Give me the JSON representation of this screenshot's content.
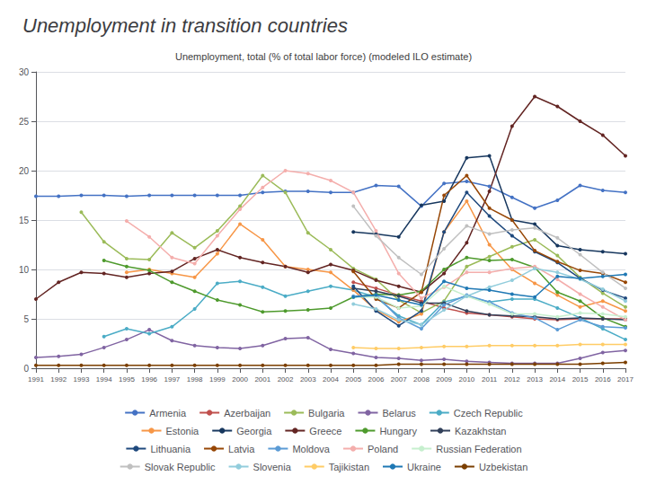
{
  "chart_data": {
    "type": "line",
    "title": "Unemployment in transition countries",
    "subtitle": "Unemployment, total (% of total labor force) (modeled ILO estimate)",
    "x": [
      1991,
      1992,
      1993,
      1994,
      1995,
      1996,
      1997,
      1998,
      1999,
      2000,
      2001,
      2002,
      2003,
      2004,
      2005,
      2006,
      2007,
      2008,
      2009,
      2010,
      2011,
      2012,
      2013,
      2014,
      2015,
      2016,
      2017
    ],
    "xlim": [
      1991,
      2017
    ],
    "xticks": [
      1991,
      1992,
      1993,
      1994,
      1995,
      1996,
      1997,
      1998,
      1999,
      2000,
      2001,
      2002,
      2003,
      2004,
      2005,
      2006,
      2007,
      2008,
      2009,
      2010,
      2011,
      2012,
      2013,
      2014,
      2015,
      2016,
      2017
    ],
    "ylim": [
      0,
      30
    ],
    "yticks": [
      0,
      5,
      10,
      15,
      20,
      25,
      30
    ],
    "grid": true,
    "legend": "bottom",
    "marker": "circle",
    "series": [
      {
        "name": "Armenia",
        "color": "#4472C4",
        "values": [
          17.4,
          17.4,
          17.5,
          17.5,
          17.4,
          17.5,
          17.5,
          17.5,
          17.5,
          17.5,
          17.8,
          17.9,
          17.9,
          17.8,
          17.8,
          18.5,
          18.4,
          16.4,
          18.7,
          18.9,
          18.4,
          17.3,
          16.2,
          17.0,
          18.5,
          18.0,
          17.8
        ]
      },
      {
        "name": "Azerbaijan",
        "color": "#C0504D",
        "values": [
          null,
          null,
          null,
          null,
          null,
          null,
          null,
          null,
          null,
          null,
          null,
          null,
          null,
          null,
          8.7,
          8.1,
          7.4,
          6.8,
          6.1,
          5.6,
          5.4,
          5.2,
          5.0,
          4.9,
          5.0,
          5.0,
          5.0
        ]
      },
      {
        "name": "Bulgaria",
        "color": "#9BBB59",
        "values": [
          null,
          null,
          15.8,
          12.8,
          11.1,
          11.0,
          13.7,
          12.2,
          13.9,
          16.4,
          19.5,
          17.8,
          13.7,
          12.0,
          10.1,
          9.0,
          6.9,
          5.6,
          6.8,
          10.3,
          11.3,
          12.3,
          13.0,
          11.4,
          9.2,
          7.6,
          6.2
        ]
      },
      {
        "name": "Belarus",
        "color": "#8064A2",
        "values": [
          1.1,
          1.2,
          1.4,
          2.1,
          2.9,
          3.9,
          2.8,
          2.3,
          2.1,
          2.0,
          2.3,
          3.0,
          3.1,
          1.9,
          1.5,
          1.1,
          1.0,
          0.8,
          0.9,
          0.7,
          0.6,
          0.5,
          0.5,
          0.5,
          1.0,
          1.6,
          1.8
        ]
      },
      {
        "name": "Czech Republic",
        "color": "#4BACC6",
        "values": [
          null,
          null,
          null,
          3.2,
          4.0,
          3.5,
          4.2,
          6.0,
          8.6,
          8.8,
          8.2,
          7.3,
          7.8,
          8.3,
          7.9,
          7.2,
          5.3,
          4.4,
          6.7,
          7.3,
          6.7,
          7.0,
          7.0,
          6.1,
          5.1,
          4.0,
          2.9
        ]
      },
      {
        "name": "Estonia",
        "color": "#F79646",
        "values": [
          null,
          null,
          null,
          null,
          9.7,
          10.0,
          9.6,
          9.2,
          11.6,
          14.6,
          13.0,
          10.3,
          10.0,
          9.7,
          7.9,
          5.9,
          4.7,
          5.5,
          13.8,
          16.9,
          12.5,
          10.0,
          8.6,
          7.4,
          6.2,
          6.8,
          5.8
        ]
      },
      {
        "name": "Georgia",
        "color": "#17375E",
        "values": [
          null,
          null,
          null,
          null,
          null,
          null,
          null,
          null,
          null,
          null,
          null,
          null,
          null,
          null,
          13.8,
          13.6,
          13.3,
          16.5,
          16.9,
          21.3,
          21.5,
          15.0,
          14.6,
          12.4,
          12.0,
          11.8,
          11.6
        ]
      },
      {
        "name": "Greece",
        "color": "#632523",
        "values": [
          7.0,
          8.7,
          9.7,
          9.6,
          9.2,
          9.6,
          9.8,
          11.1,
          12.0,
          11.2,
          10.7,
          10.3,
          9.7,
          10.5,
          9.9,
          8.9,
          8.3,
          7.7,
          9.6,
          12.7,
          17.9,
          24.5,
          27.5,
          26.5,
          25.0,
          23.6,
          21.5
        ]
      },
      {
        "name": "Hungary",
        "color": "#4E9A2D",
        "values": [
          null,
          null,
          null,
          10.9,
          10.3,
          9.9,
          8.7,
          7.8,
          6.9,
          6.4,
          5.7,
          5.8,
          5.9,
          6.1,
          7.2,
          7.5,
          7.4,
          7.8,
          10.0,
          11.2,
          10.9,
          11.0,
          10.2,
          7.7,
          6.8,
          5.1,
          4.2
        ]
      },
      {
        "name": "Kazakhstan",
        "color": "#31405A",
        "values": [
          null,
          null,
          null,
          null,
          null,
          null,
          null,
          null,
          null,
          null,
          null,
          null,
          null,
          null,
          8.1,
          7.8,
          7.3,
          6.6,
          6.6,
          5.8,
          5.4,
          5.3,
          5.2,
          5.0,
          5.1,
          5.0,
          4.9
        ]
      },
      {
        "name": "Lithuania",
        "color": "#1F497D",
        "values": [
          null,
          null,
          null,
          null,
          null,
          null,
          null,
          null,
          null,
          null,
          null,
          null,
          null,
          null,
          8.3,
          5.8,
          4.3,
          5.8,
          13.8,
          17.8,
          15.4,
          13.4,
          11.8,
          10.7,
          9.1,
          7.9,
          7.1
        ]
      },
      {
        "name": "Latvia",
        "color": "#974706",
        "values": [
          null,
          null,
          null,
          null,
          null,
          null,
          null,
          null,
          null,
          null,
          null,
          null,
          null,
          null,
          9.8,
          7.0,
          6.1,
          7.7,
          17.5,
          19.5,
          16.2,
          15.0,
          11.9,
          10.8,
          9.9,
          9.6,
          8.7
        ]
      },
      {
        "name": "Moldova",
        "color": "#5B9BD5",
        "values": [
          null,
          null,
          null,
          null,
          null,
          null,
          null,
          null,
          null,
          null,
          null,
          null,
          null,
          null,
          7.3,
          7.4,
          5.1,
          4.0,
          6.4,
          7.4,
          6.7,
          5.6,
          5.1,
          3.9,
          4.9,
          4.2,
          4.1
        ]
      },
      {
        "name": "Poland",
        "color": "#F4AEAC",
        "values": [
          null,
          null,
          null,
          null,
          14.9,
          13.3,
          11.2,
          10.6,
          13.4,
          16.1,
          18.3,
          20.0,
          19.7,
          19.0,
          17.8,
          13.9,
          9.6,
          7.1,
          8.2,
          9.7,
          9.7,
          10.1,
          10.3,
          9.0,
          7.5,
          6.2,
          4.9
        ]
      },
      {
        "name": "Russian Federation",
        "color": "#C6EFCE",
        "values": [
          null,
          null,
          null,
          null,
          null,
          null,
          null,
          null,
          null,
          null,
          null,
          null,
          null,
          null,
          7.2,
          7.2,
          6.1,
          6.3,
          8.3,
          7.3,
          6.5,
          5.5,
          5.5,
          5.2,
          5.6,
          5.5,
          5.2
        ]
      },
      {
        "name": "Slovak Republic",
        "color": "#C0C0C0",
        "values": [
          null,
          null,
          null,
          null,
          null,
          null,
          null,
          null,
          null,
          null,
          null,
          null,
          null,
          null,
          16.4,
          13.4,
          11.2,
          9.5,
          12.1,
          14.4,
          13.6,
          14.0,
          14.2,
          13.2,
          11.5,
          9.7,
          8.1
        ]
      },
      {
        "name": "Slovenia",
        "color": "#92CDDC",
        "values": [
          null,
          null,
          null,
          null,
          null,
          null,
          null,
          null,
          null,
          null,
          null,
          null,
          null,
          null,
          6.5,
          6.0,
          4.9,
          4.4,
          5.9,
          7.3,
          8.2,
          8.9,
          10.1,
          9.7,
          9.0,
          8.0,
          6.8
        ]
      },
      {
        "name": "Tajikistan",
        "color": "#FFCC66",
        "values": [
          null,
          null,
          null,
          null,
          null,
          null,
          null,
          null,
          null,
          null,
          null,
          null,
          null,
          null,
          2.1,
          2.0,
          2.0,
          2.1,
          2.2,
          2.2,
          2.3,
          2.3,
          2.3,
          2.3,
          2.4,
          2.4,
          2.4
        ]
      },
      {
        "name": "Ukraine",
        "color": "#1F78B4",
        "values": [
          null,
          null,
          null,
          null,
          null,
          null,
          null,
          null,
          null,
          null,
          null,
          null,
          null,
          null,
          7.2,
          7.4,
          6.9,
          6.4,
          8.8,
          8.1,
          7.9,
          7.5,
          7.2,
          9.3,
          9.1,
          9.3,
          9.5
        ]
      },
      {
        "name": "Uzbekistan",
        "color": "#7B3F00",
        "values": [
          0.3,
          0.3,
          0.3,
          0.3,
          0.3,
          0.3,
          0.3,
          0.3,
          0.3,
          0.3,
          0.3,
          0.3,
          0.3,
          0.3,
          0.3,
          0.3,
          0.4,
          0.4,
          0.4,
          0.4,
          0.4,
          0.4,
          0.4,
          0.4,
          0.4,
          0.5,
          0.6
        ]
      }
    ]
  }
}
